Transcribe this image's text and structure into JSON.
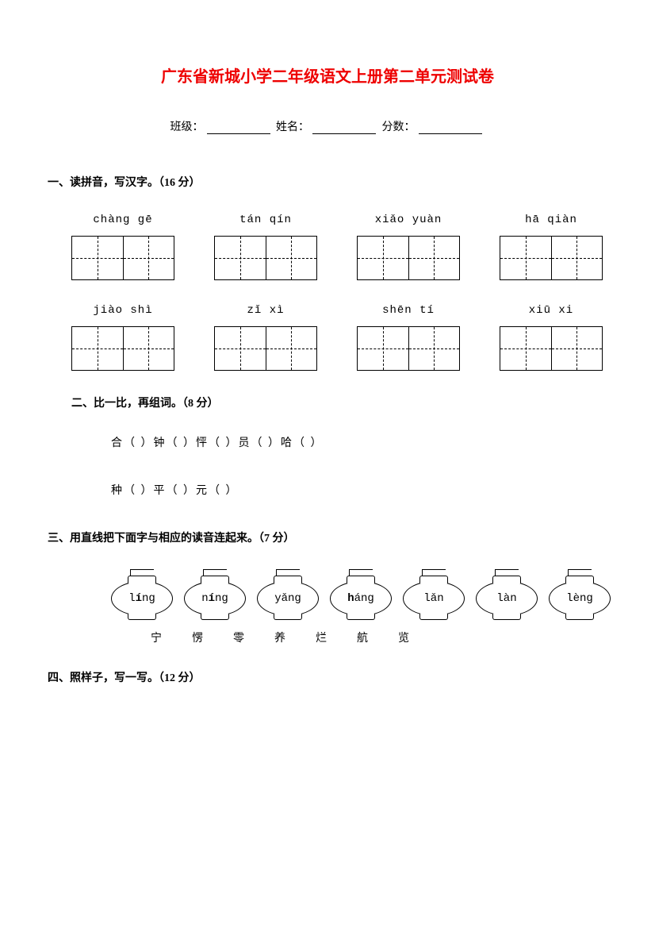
{
  "title": "广东省新城小学二年级语文上册第二单元测试卷",
  "info": {
    "class_label": "班级：",
    "name_label": "姓名：",
    "score_label": "分数："
  },
  "q1": {
    "heading": "一、读拼音，写汉字。（16 分）",
    "row1": [
      "chàng gē",
      "tán  qín",
      "xiǎo yuàn",
      "hā  qiàn"
    ],
    "row2": [
      "jiào shì",
      "zǐ  xì",
      "shēn tí",
      "xiū  xi"
    ]
  },
  "q2": {
    "heading": "二、比一比，再组词。（8 分）",
    "line1": "合（      ）钟（      ）怦（      ）员（      ）哈（      ）",
    "line2": "种（      ）平（      ）元（      ）"
  },
  "q3": {
    "heading": "三、用直线把下面字与相应的读音连起来。（7 分）",
    "lanterns": [
      {
        "pre": "l",
        "bold": "í",
        "post": "ng"
      },
      {
        "pre": "n",
        "bold": "í",
        "post": "ng"
      },
      {
        "pre": "",
        "bold": "",
        "post": "yǎng"
      },
      {
        "pre": "",
        "bold": "h",
        "post": "áng"
      },
      {
        "pre": "",
        "bold": "",
        "post": "lǎn"
      },
      {
        "pre": "",
        "bold": "",
        "post": "làn"
      },
      {
        "pre": "",
        "bold": "",
        "post": "lèng"
      }
    ],
    "chars": [
      "宁",
      "愣",
      "零",
      "养",
      "烂",
      "航",
      "览"
    ]
  },
  "q4": {
    "heading": "四、照样子，写一写。（12 分）"
  },
  "colors": {
    "title": "#ee0000",
    "text": "#000000",
    "bg": "#ffffff"
  }
}
